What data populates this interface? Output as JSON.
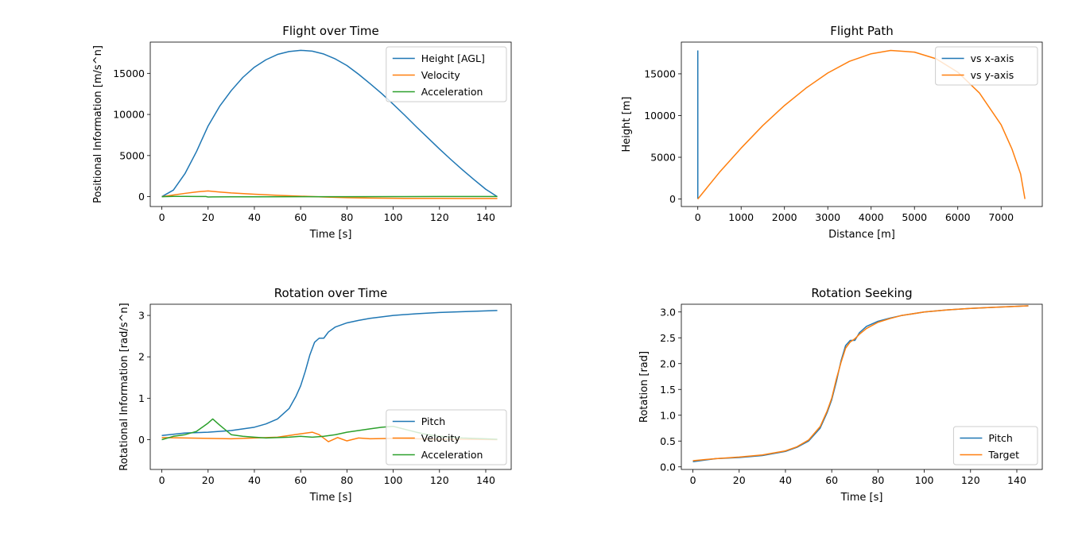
{
  "chart_data": [
    {
      "type": "line",
      "title": "Flight over Time",
      "xlabel": "Time [s]",
      "ylabel": "Positional Information [m/s^n]",
      "xlim": [
        -5,
        151
      ],
      "ylim": [
        -1200,
        18800
      ],
      "xticks": [
        0,
        20,
        40,
        60,
        80,
        100,
        120,
        140
      ],
      "yticks": [
        0,
        5000,
        10000,
        15000
      ],
      "legend": "top-right",
      "series": [
        {
          "name": "Height [AGL]",
          "color": "#1f77b4",
          "x": [
            0,
            5,
            10,
            15,
            20,
            25,
            30,
            35,
            40,
            45,
            50,
            55,
            60,
            65,
            70,
            75,
            80,
            85,
            90,
            95,
            100,
            105,
            110,
            115,
            120,
            125,
            130,
            135,
            140,
            145
          ],
          "y": [
            0,
            800,
            2800,
            5500,
            8600,
            11000,
            12900,
            14500,
            15750,
            16650,
            17300,
            17650,
            17800,
            17700,
            17350,
            16750,
            15950,
            14900,
            13750,
            12550,
            11250,
            9900,
            8500,
            7150,
            5800,
            4500,
            3250,
            2050,
            900,
            0
          ]
        },
        {
          "name": "Velocity",
          "color": "#ff7f0e",
          "x": [
            0,
            5,
            10,
            15,
            20,
            25,
            30,
            40,
            50,
            60,
            70,
            80,
            90,
            100,
            110,
            120,
            130,
            140,
            145
          ],
          "y": [
            0,
            200,
            400,
            580,
            700,
            560,
            450,
            300,
            170,
            60,
            -40,
            -120,
            -170,
            -200,
            -210,
            -215,
            -220,
            -225,
            -225
          ]
        },
        {
          "name": "Acceleration",
          "color": "#2ca02c",
          "x": [
            0,
            5,
            10,
            15,
            19,
            20,
            22,
            30,
            40,
            60,
            80,
            100,
            120,
            145
          ],
          "y": [
            0,
            30,
            30,
            20,
            20,
            -40,
            -30,
            -20,
            -15,
            -10,
            0,
            10,
            15,
            20
          ]
        }
      ]
    },
    {
      "type": "line",
      "title": "Flight Path",
      "xlabel": "Distance [m]",
      "ylabel": "Height [m]",
      "xlim": [
        -380,
        7950
      ],
      "ylim": [
        -900,
        18800
      ],
      "xticks": [
        0,
        1000,
        2000,
        3000,
        4000,
        5000,
        6000,
        7000
      ],
      "yticks": [
        0,
        5000,
        10000,
        15000
      ],
      "legend": "top-right",
      "series": [
        {
          "name": "vs x-axis",
          "color": "#1f77b4",
          "x": [
            0,
            0
          ],
          "y": [
            0,
            17800
          ]
        },
        {
          "name": "vs y-axis",
          "color": "#ff7f0e",
          "x": [
            0,
            500,
            1000,
            1500,
            2000,
            2500,
            3000,
            3500,
            4000,
            4450,
            5000,
            5500,
            6000,
            6500,
            7000,
            7250,
            7450,
            7550
          ],
          "y": [
            0,
            3200,
            6100,
            8800,
            11200,
            13300,
            15100,
            16500,
            17400,
            17800,
            17600,
            16800,
            15200,
            12700,
            8900,
            6000,
            3000,
            0
          ]
        }
      ]
    },
    {
      "type": "line",
      "title": "Rotation over Time",
      "xlabel": "Time [s]",
      "ylabel": "Rotational Information [rad/s^n]",
      "xlim": [
        -5,
        151
      ],
      "ylim": [
        -0.72,
        3.27
      ],
      "xticks": [
        0,
        20,
        40,
        60,
        80,
        100,
        120,
        140
      ],
      "yticks": [
        0,
        1,
        2,
        3
      ],
      "legend": "lower-right",
      "series": [
        {
          "name": "Pitch",
          "color": "#1f77b4",
          "x": [
            0,
            10,
            20,
            30,
            40,
            45,
            50,
            55,
            58,
            60,
            62,
            64,
            66,
            68,
            70,
            72,
            75,
            80,
            85,
            90,
            100,
            110,
            120,
            130,
            140,
            145
          ],
          "y": [
            0.1,
            0.16,
            0.18,
            0.22,
            0.3,
            0.38,
            0.5,
            0.75,
            1.05,
            1.3,
            1.65,
            2.05,
            2.35,
            2.45,
            2.45,
            2.6,
            2.72,
            2.82,
            2.88,
            2.93,
            3.0,
            3.04,
            3.07,
            3.09,
            3.11,
            3.12
          ]
        },
        {
          "name": "Velocity",
          "color": "#ff7f0e",
          "x": [
            0,
            10,
            20,
            30,
            40,
            50,
            55,
            60,
            65,
            68,
            72,
            76,
            80,
            85,
            90,
            100,
            110,
            120,
            130,
            145
          ],
          "y": [
            0.05,
            0.04,
            0.03,
            0.02,
            0.04,
            0.06,
            0.1,
            0.14,
            0.18,
            0.12,
            -0.05,
            0.05,
            -0.03,
            0.04,
            0.02,
            0.03,
            0.02,
            0.01,
            0.01,
            0.0
          ]
        },
        {
          "name": "Acceleration",
          "color": "#2ca02c",
          "x": [
            0,
            5,
            10,
            15,
            20,
            22,
            25,
            30,
            35,
            40,
            45,
            50,
            55,
            60,
            65,
            70,
            75,
            80,
            85,
            90,
            95,
            100,
            105,
            110,
            115,
            120,
            130,
            140,
            145
          ],
          "y": [
            0.0,
            0.08,
            0.12,
            0.2,
            0.4,
            0.5,
            0.35,
            0.12,
            0.08,
            0.06,
            0.04,
            0.05,
            0.06,
            0.08,
            0.06,
            0.08,
            0.12,
            0.18,
            0.22,
            0.26,
            0.3,
            0.32,
            0.25,
            0.18,
            0.12,
            0.08,
            0.04,
            0.02,
            0.01
          ]
        }
      ]
    },
    {
      "type": "line",
      "title": "Rotation Seeking",
      "xlabel": "Time [s]",
      "ylabel": "Rotation [rad]",
      "xlim": [
        -5,
        151
      ],
      "ylim": [
        -0.05,
        3.15
      ],
      "xticks": [
        0,
        20,
        40,
        60,
        80,
        100,
        120,
        140
      ],
      "yticks": [
        0.0,
        0.5,
        1.0,
        1.5,
        2.0,
        2.5,
        3.0
      ],
      "legend": "lower-right",
      "series": [
        {
          "name": "Pitch",
          "color": "#1f77b4",
          "x": [
            0,
            10,
            20,
            30,
            40,
            45,
            50,
            55,
            58,
            60,
            62,
            64,
            66,
            68,
            70,
            72,
            75,
            80,
            85,
            90,
            100,
            110,
            120,
            130,
            140,
            145
          ],
          "y": [
            0.1,
            0.16,
            0.18,
            0.22,
            0.3,
            0.38,
            0.5,
            0.75,
            1.05,
            1.3,
            1.65,
            2.05,
            2.35,
            2.45,
            2.45,
            2.6,
            2.72,
            2.82,
            2.88,
            2.93,
            3.0,
            3.04,
            3.07,
            3.09,
            3.11,
            3.12
          ]
        },
        {
          "name": "Target",
          "color": "#ff7f0e",
          "x": [
            0,
            10,
            20,
            30,
            40,
            45,
            50,
            55,
            58,
            60,
            62,
            64,
            66,
            68,
            70,
            72,
            75,
            80,
            85,
            90,
            100,
            110,
            120,
            130,
            140,
            145
          ],
          "y": [
            0.12,
            0.16,
            0.19,
            0.23,
            0.31,
            0.39,
            0.52,
            0.78,
            1.08,
            1.33,
            1.7,
            2.02,
            2.3,
            2.42,
            2.48,
            2.57,
            2.68,
            2.8,
            2.87,
            2.93,
            3.0,
            3.04,
            3.07,
            3.09,
            3.11,
            3.12
          ]
        }
      ]
    }
  ]
}
